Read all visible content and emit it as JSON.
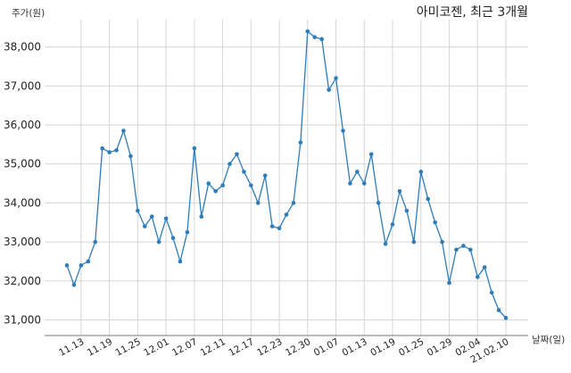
{
  "chart_data": {
    "type": "line",
    "title": "아미코젠, 최근 3개월",
    "ylabel": "주가(원)",
    "xlabel": "날짜(일)",
    "ylim": [
      30600,
      38700
    ],
    "yticks": [
      31000,
      32000,
      33000,
      34000,
      35000,
      36000,
      37000,
      38000
    ],
    "ytick_labels": [
      "31,000",
      "32,000",
      "33,000",
      "34,000",
      "35,000",
      "36,000",
      "37,000",
      "38,000"
    ],
    "xticks": [
      {
        "index": 2,
        "label": "11.13"
      },
      {
        "index": 6,
        "label": "11.19"
      },
      {
        "index": 10,
        "label": "11.25"
      },
      {
        "index": 14,
        "label": "12.01"
      },
      {
        "index": 18,
        "label": "12.07"
      },
      {
        "index": 22,
        "label": "12.11"
      },
      {
        "index": 26,
        "label": "12.17"
      },
      {
        "index": 30,
        "label": "12.23"
      },
      {
        "index": 34,
        "label": "12.30"
      },
      {
        "index": 38,
        "label": "01.07"
      },
      {
        "index": 42,
        "label": "01.13"
      },
      {
        "index": 46,
        "label": "01.19"
      },
      {
        "index": 50,
        "label": "01.25"
      },
      {
        "index": 54,
        "label": "01.29"
      },
      {
        "index": 58,
        "label": "02.04"
      },
      {
        "index": 62,
        "label": "21.02.10"
      }
    ],
    "grid": true,
    "color": "#2e7cb8",
    "series": [
      {
        "values": [
          32400,
          31900,
          32400,
          32500,
          33000,
          35400,
          35300,
          35350,
          35850,
          35200,
          33800,
          33400,
          33650,
          33000,
          33600,
          33100,
          32500,
          33250,
          35400,
          33650,
          34500,
          34300,
          34450,
          35000,
          35250,
          34800,
          34450,
          34000,
          34700,
          33400,
          33350,
          33700,
          34000,
          35550,
          38400,
          38250,
          38200,
          36900,
          37200,
          35850,
          34500,
          34800,
          34500,
          35250,
          34000,
          32950,
          33450,
          34300,
          33800,
          33000,
          34800,
          34100,
          33500,
          33000,
          31950,
          32800,
          32900,
          32800,
          32100,
          32350,
          31700,
          31250,
          31050
        ]
      }
    ]
  }
}
